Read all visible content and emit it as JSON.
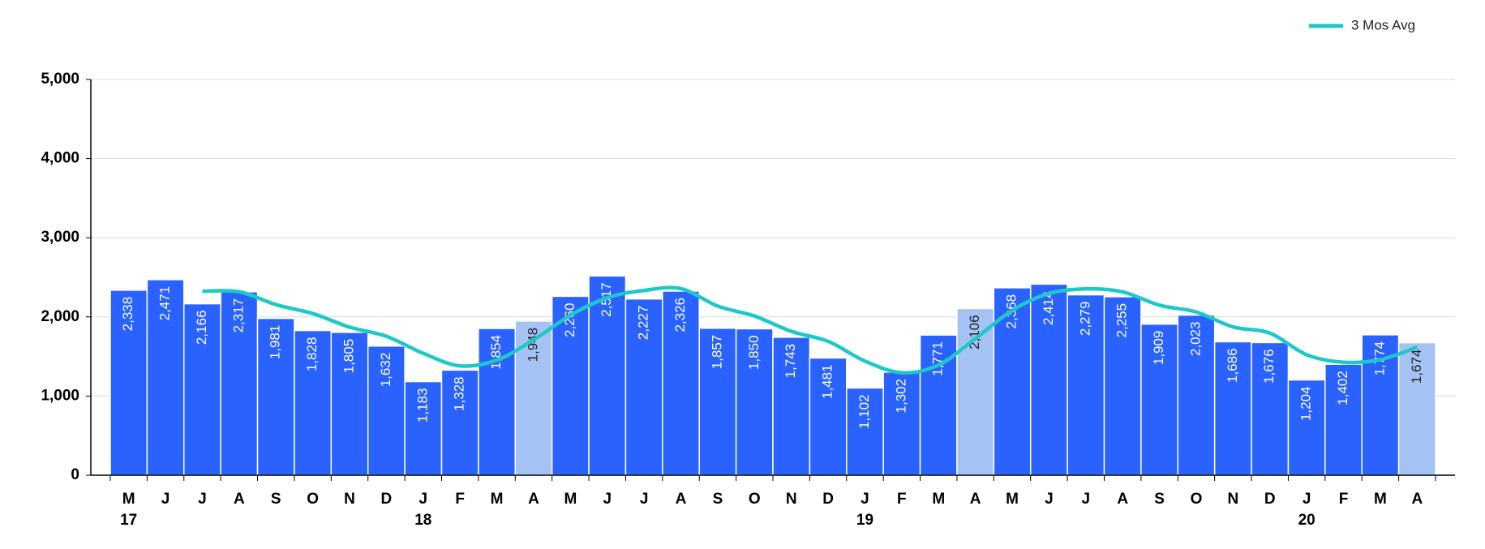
{
  "chart_data": {
    "type": "bar",
    "categories": [
      "M",
      "J",
      "J",
      "A",
      "S",
      "O",
      "N",
      "D",
      "J",
      "F",
      "M",
      "A",
      "M",
      "J",
      "J",
      "A",
      "S",
      "O",
      "N",
      "D",
      "J",
      "F",
      "M",
      "A",
      "M",
      "J",
      "J",
      "A",
      "S",
      "O",
      "N",
      "D",
      "J",
      "F",
      "M",
      "A"
    ],
    "x_sublabels": [
      "17",
      null,
      null,
      null,
      null,
      null,
      null,
      null,
      "18",
      null,
      null,
      null,
      null,
      null,
      null,
      null,
      null,
      null,
      null,
      null,
      "19",
      null,
      null,
      null,
      null,
      null,
      null,
      null,
      null,
      null,
      null,
      null,
      "20",
      null,
      null,
      null
    ],
    "values": [
      2338,
      2471,
      2166,
      2317,
      1981,
      1828,
      1805,
      1632,
      1183,
      1328,
      1854,
      1948,
      2260,
      2517,
      2227,
      2326,
      1857,
      1850,
      1743,
      1481,
      1102,
      1302,
      1771,
      2106,
      2368,
      2414,
      2279,
      2255,
      1909,
      2023,
      1686,
      1676,
      1204,
      1402,
      1774,
      1674
    ],
    "value_labels": [
      "2,338",
      "2,471",
      "2,166",
      "2,317",
      "1,981",
      "1,828",
      "1,805",
      "1,632",
      "1,183",
      "1,328",
      "1,854",
      "1,948",
      "2,260",
      "2,517",
      "2,227",
      "2,326",
      "1,857",
      "1,850",
      "1,743",
      "1,481",
      "1,102",
      "1,302",
      "1,771",
      "2,106",
      "2,368",
      "2,414",
      "2,279",
      "2,255",
      "1,909",
      "2,023",
      "1,686",
      "1,676",
      "1,204",
      "1,402",
      "1,774",
      "1,674"
    ],
    "colors": [
      "#2962ff",
      "#2962ff",
      "#2962ff",
      "#2962ff",
      "#2962ff",
      "#2962ff",
      "#2962ff",
      "#2962ff",
      "#2962ff",
      "#2962ff",
      "#2962ff",
      "#a4c2f4",
      "#2962ff",
      "#2962ff",
      "#2962ff",
      "#2962ff",
      "#2962ff",
      "#2962ff",
      "#2962ff",
      "#2962ff",
      "#2962ff",
      "#2962ff",
      "#2962ff",
      "#a4c2f4",
      "#2962ff",
      "#2962ff",
      "#2962ff",
      "#2962ff",
      "#2962ff",
      "#2962ff",
      "#2962ff",
      "#2962ff",
      "#2962ff",
      "#2962ff",
      "#2962ff",
      "#a4c2f4"
    ],
    "series": [
      {
        "name": "3 Mos Avg",
        "type": "line",
        "color": "#1ec8c8",
        "values": [
          null,
          null,
          2325,
          2318,
          2155,
          2042,
          1871,
          1755,
          1540,
          1381,
          1455,
          1710,
          2021,
          2242,
          2335,
          2357,
          2137,
          2011,
          1817,
          1691,
          1442,
          1295,
          1392,
          1726,
          2082,
          2296,
          2354,
          2316,
          2148,
          2062,
          1873,
          1795,
          1522,
          1427,
          1460,
          1617
        ]
      }
    ],
    "ylim": [
      0,
      5000
    ],
    "yticks": [
      0,
      {
        "value": 1000,
        "label": "1,000"
      },
      {
        "value": 2000,
        "label": "2,000"
      },
      {
        "value": 3000,
        "label": "3,000"
      },
      {
        "value": 4000,
        "label": "4,000"
      },
      {
        "value": 5000,
        "label": "5,000"
      }
    ],
    "grid": true,
    "legend": "top-right"
  }
}
